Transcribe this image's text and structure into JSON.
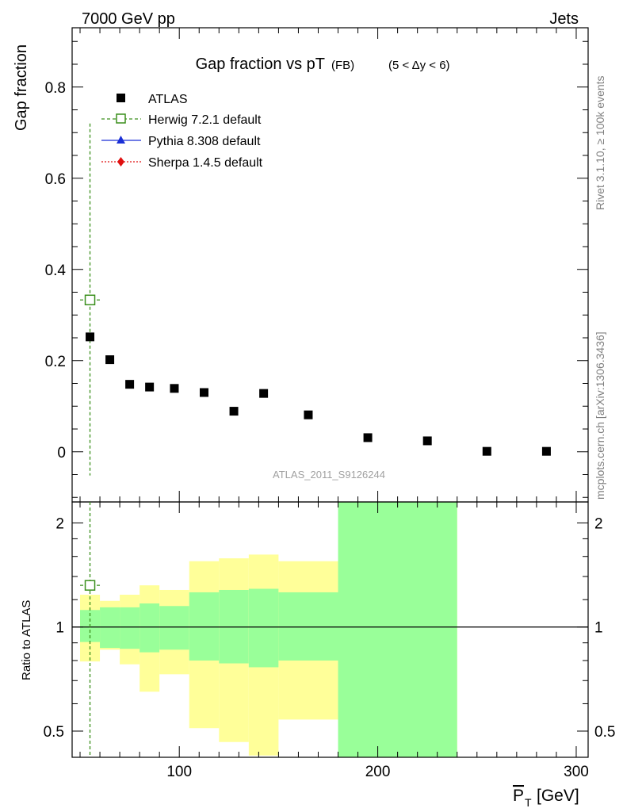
{
  "header": {
    "left": "7000 GeV pp",
    "right": "Jets"
  },
  "side": {
    "rivet": "Rivet 3.1.10, ≥ 100k events",
    "mcplots": "mcplots.cern.ch [arXiv:1306.3436]"
  },
  "chart_data": {
    "type": "scatter",
    "title": "Gap fraction vs pT",
    "title_sub": "(FB)",
    "title_cut": "(5 < Δy < 6)",
    "analysis_id": "ATLAS_2011_S9126244",
    "xlabel": "P",
    "xlabel_sub": "T",
    "xlabel_unit": "[GeV]",
    "ylabel": "Gap fraction",
    "ylim": [
      -0.11,
      0.93
    ],
    "xlim": [
      46,
      306
    ],
    "main_ticks": [
      {
        "value": 0,
        "label": "0"
      },
      {
        "value": 0.2,
        "label": "0.2"
      },
      {
        "value": 0.4,
        "label": "0.4"
      },
      {
        "value": 0.6,
        "label": "0.6"
      },
      {
        "value": 0.8,
        "label": "0.8"
      }
    ],
    "x_ticks": [
      {
        "value": 100,
        "label": "100"
      },
      {
        "value": 200,
        "label": "200"
      },
      {
        "value": 300,
        "label": "300"
      }
    ],
    "legend": [
      {
        "label": "ATLAS",
        "style": "data"
      },
      {
        "label": "Herwig 7.2.1 default",
        "style": "herwig"
      },
      {
        "label": "Pythia 8.308 default",
        "style": "pythia"
      },
      {
        "label": "Sherpa 1.4.5 default",
        "style": "sherpa"
      }
    ],
    "series": [
      {
        "name": "ATLAS",
        "color": "#000000",
        "points": [
          {
            "x": 55,
            "y": 0.252
          },
          {
            "x": 65,
            "y": 0.202
          },
          {
            "x": 75,
            "y": 0.148
          },
          {
            "x": 85,
            "y": 0.142
          },
          {
            "x": 97.5,
            "y": 0.139
          },
          {
            "x": 112.5,
            "y": 0.13
          },
          {
            "x": 127.5,
            "y": 0.089
          },
          {
            "x": 142.5,
            "y": 0.128
          },
          {
            "x": 165,
            "y": 0.081
          },
          {
            "x": 195,
            "y": 0.031
          },
          {
            "x": 225,
            "y": 0.024
          },
          {
            "x": 255,
            "y": 0.001
          },
          {
            "x": 285,
            "y": 0.001
          }
        ]
      },
      {
        "name": "Herwig 7.2.1 default",
        "color": "#3a8f1c",
        "points": [
          {
            "x": 55,
            "y": 0.333,
            "xerr": 5,
            "ylo": -0.052,
            "yhi": 0.72
          }
        ]
      }
    ],
    "ratio": {
      "ylabel": "Ratio to ATLAS",
      "ylog": true,
      "ylim": [
        0.42,
        2.3
      ],
      "ticks": [
        {
          "value": 0.5,
          "label": "0.5"
        },
        {
          "value": 1,
          "label": "1"
        },
        {
          "value": 2,
          "label": "2"
        }
      ],
      "bands": [
        {
          "x0": 50,
          "x1": 60,
          "g_lo": 0.905,
          "g_hi": 1.12,
          "y_lo": 0.795,
          "y_hi": 1.24
        },
        {
          "x0": 60,
          "x1": 70,
          "g_lo": 0.87,
          "g_hi": 1.14,
          "y_lo": 0.86,
          "y_hi": 1.19
        },
        {
          "x0": 70,
          "x1": 80,
          "g_lo": 0.865,
          "g_hi": 1.14,
          "y_lo": 0.78,
          "y_hi": 1.24
        },
        {
          "x0": 80,
          "x1": 90,
          "g_lo": 0.845,
          "g_hi": 1.17,
          "y_lo": 0.65,
          "y_hi": 1.32
        },
        {
          "x0": 90,
          "x1": 105,
          "g_lo": 0.86,
          "g_hi": 1.15,
          "y_lo": 0.73,
          "y_hi": 1.28
        },
        {
          "x0": 105,
          "x1": 120,
          "g_lo": 0.8,
          "g_hi": 1.26,
          "y_lo": 0.51,
          "y_hi": 1.55
        },
        {
          "x0": 120,
          "x1": 135,
          "g_lo": 0.785,
          "g_hi": 1.28,
          "y_lo": 0.465,
          "y_hi": 1.58
        },
        {
          "x0": 135,
          "x1": 150,
          "g_lo": 0.765,
          "g_hi": 1.29,
          "y_lo": 0.425,
          "y_hi": 1.62
        },
        {
          "x0": 150,
          "x1": 180,
          "g_lo": 0.8,
          "g_hi": 1.26,
          "y_lo": 0.54,
          "y_hi": 1.55
        },
        {
          "x0": 180,
          "x1": 240,
          "g_lo": 0.42,
          "g_hi": 2.3,
          "y_lo": 0.42,
          "y_hi": 2.3
        }
      ],
      "herwig": {
        "x": 55,
        "xerr": 5,
        "y": 1.32
      }
    }
  }
}
